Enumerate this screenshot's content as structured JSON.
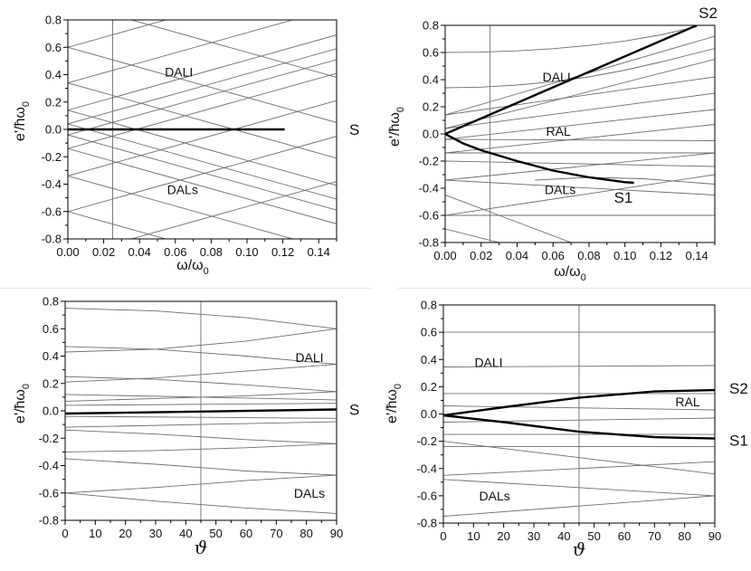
{
  "figure": {
    "panels": [
      {
        "id": "top-left",
        "xlabel": "ω/ω",
        "xlabel_sub": "0",
        "ylabel": "e'/ħω",
        "ylabel_sub": "0",
        "x_ticks": [
          "0.00",
          "0.02",
          "0.04",
          "0.06",
          "0.08",
          "0.10",
          "0.12",
          "0.14"
        ],
        "y_ticks": [
          "0.8",
          "0.6",
          "0.4",
          "0.2",
          "0.0",
          "-0.2",
          "-0.4",
          "-0.6",
          "-0.8"
        ],
        "region_labels": [
          "DALI",
          "DALs"
        ],
        "curve_labels": [
          "S"
        ]
      },
      {
        "id": "top-right",
        "xlabel": "ω/ω",
        "xlabel_sub": "0",
        "ylabel": "e'/ħω",
        "ylabel_sub": "0",
        "x_ticks": [
          "0.00",
          "0.02",
          "0.04",
          "0.06",
          "0.08",
          "0.10",
          "0.12",
          "0.14"
        ],
        "y_ticks": [
          "0.8",
          "0.6",
          "0.4",
          "0.2",
          "0.0",
          "-0.2",
          "-0.4",
          "-0.6",
          "-0.8"
        ],
        "region_labels": [
          "DALI",
          "RAL",
          "DALs"
        ],
        "curve_labels": [
          "S2",
          "S1"
        ]
      },
      {
        "id": "bottom-left",
        "xlabel": "ϑ",
        "ylabel": "e'/ħω",
        "ylabel_sub": "0",
        "x_ticks": [
          "0",
          "10",
          "20",
          "30",
          "40",
          "50",
          "60",
          "70",
          "80",
          "90"
        ],
        "y_ticks": [
          "0.8",
          "0.6",
          "0.4",
          "0.2",
          "0.0",
          "-0.2",
          "-0.4",
          "-0.6",
          "-0.8"
        ],
        "region_labels": [
          "DALI",
          "DALs"
        ],
        "curve_labels": [
          "S"
        ]
      },
      {
        "id": "bottom-right",
        "xlabel": "ϑ",
        "ylabel": "e'/ħω",
        "ylabel_sub": "0",
        "x_ticks": [
          "0",
          "10",
          "20",
          "30",
          "40",
          "50",
          "60",
          "70",
          "80",
          "90"
        ],
        "y_ticks": [
          "0.8",
          "0.6",
          "0.4",
          "0.2",
          "0.0",
          "-0.2",
          "-0.4",
          "-0.6",
          "-0.8"
        ],
        "region_labels": [
          "DALI",
          "RAL",
          "DALs"
        ],
        "curve_labels": [
          "S2",
          "S1"
        ]
      }
    ]
  },
  "chart_data": [
    {
      "type": "line",
      "panel": "top-left",
      "title": "",
      "xlabel": "ω/ω0",
      "ylabel": "e'/ħω0",
      "xlim": [
        0,
        0.15
      ],
      "ylim": [
        -0.8,
        0.8
      ],
      "vline_x": 0.025,
      "grid": false,
      "legend": "none",
      "background_lines": [
        [
          [
            0,
            0.6
          ],
          [
            0.15,
            0.05
          ]
        ],
        [
          [
            0,
            0.6
          ],
          [
            0.15,
            1.15
          ]
        ],
        [
          [
            0,
            0.34
          ],
          [
            0.15,
            -0.21
          ]
        ],
        [
          [
            0,
            0.34
          ],
          [
            0.15,
            0.89
          ]
        ],
        [
          [
            0,
            0.14
          ],
          [
            0.15,
            -0.41
          ]
        ],
        [
          [
            0,
            0.14
          ],
          [
            0.15,
            0.69
          ]
        ],
        [
          [
            0,
            0.04
          ],
          [
            0.15,
            -0.51
          ]
        ],
        [
          [
            0,
            0.04
          ],
          [
            0.15,
            0.59
          ]
        ],
        [
          [
            0,
            -0.04
          ],
          [
            0.15,
            0.51
          ]
        ],
        [
          [
            0,
            -0.04
          ],
          [
            0.15,
            -0.59
          ]
        ],
        [
          [
            0,
            -0.14
          ],
          [
            0.15,
            0.41
          ]
        ],
        [
          [
            0,
            -0.14
          ],
          [
            0.15,
            -0.69
          ]
        ],
        [
          [
            0,
            -0.34
          ],
          [
            0.15,
            0.21
          ]
        ],
        [
          [
            0,
            -0.34
          ],
          [
            0.15,
            -0.89
          ]
        ],
        [
          [
            0,
            -0.6
          ],
          [
            0.15,
            -0.05
          ]
        ],
        [
          [
            0,
            -0.6
          ],
          [
            0.15,
            -1.15
          ]
        ],
        [
          [
            0,
            0.93
          ],
          [
            0.15,
            0.38
          ]
        ],
        [
          [
            0,
            -0.93
          ],
          [
            0.15,
            -0.38
          ]
        ]
      ],
      "bold_series": [
        {
          "name": "S",
          "points": [
            [
              0,
              0
            ],
            [
              0.121,
              0
            ]
          ],
          "label_at": "right"
        }
      ],
      "region_labels": [
        {
          "text": "DALI",
          "x": 0.062,
          "y": 0.42
        },
        {
          "text": "DALs",
          "x": 0.064,
          "y": -0.44
        }
      ]
    },
    {
      "type": "line",
      "panel": "top-right",
      "title": "",
      "xlabel": "ω/ω0",
      "ylabel": "e'/ħω0",
      "xlim": [
        0,
        0.15
      ],
      "ylim": [
        -0.8,
        0.8
      ],
      "vline_x": 0.025,
      "grid": false,
      "legend": "none",
      "background_lines": [
        [
          [
            0,
            0.6
          ],
          [
            0.02,
            0.603
          ],
          [
            0.04,
            0.612
          ],
          [
            0.06,
            0.628
          ],
          [
            0.08,
            0.652
          ],
          [
            0.1,
            0.685
          ],
          [
            0.12,
            0.73
          ],
          [
            0.14,
            0.79
          ]
        ],
        [
          [
            0,
            0.34
          ],
          [
            0.02,
            0.345
          ],
          [
            0.04,
            0.36
          ],
          [
            0.06,
            0.385
          ],
          [
            0.08,
            0.42
          ],
          [
            0.1,
            0.47
          ],
          [
            0.12,
            0.53
          ],
          [
            0.15,
            0.63
          ]
        ],
        [
          [
            0,
            0.14
          ],
          [
            0.15,
            0.72
          ]
        ],
        [
          [
            0,
            0.04
          ],
          [
            0.15,
            0.55
          ]
        ],
        [
          [
            0,
            0.14
          ],
          [
            0.15,
            0.42
          ]
        ],
        [
          [
            0,
            0.04
          ],
          [
            0.15,
            0.3
          ]
        ],
        [
          [
            0,
            -0.04
          ],
          [
            0.15,
            0.18
          ]
        ],
        [
          [
            0,
            -0.14
          ],
          [
            0.15,
            0.07
          ]
        ],
        [
          [
            0,
            -0.04
          ],
          [
            0.15,
            -0.05
          ]
        ],
        [
          [
            0,
            -0.14
          ],
          [
            0.15,
            -0.14
          ]
        ],
        [
          [
            0,
            -0.2
          ],
          [
            0.15,
            -0.24
          ]
        ],
        [
          [
            0,
            -0.34
          ],
          [
            0.15,
            -0.14
          ]
        ],
        [
          [
            0,
            -0.6
          ],
          [
            0.15,
            -0.3
          ]
        ],
        [
          [
            0,
            -0.34
          ],
          [
            0.15,
            -0.45
          ]
        ],
        [
          [
            0,
            -0.6
          ],
          [
            0.15,
            -0.6
          ]
        ],
        [
          [
            0,
            -0.45
          ],
          [
            0.04,
            -0.65
          ],
          [
            0.07,
            -0.8
          ]
        ],
        [
          [
            0,
            -0.7
          ],
          [
            0.03,
            -0.8
          ]
        ],
        [
          [
            0.05,
            -0.34
          ],
          [
            0.08,
            -0.32
          ],
          [
            0.11,
            -0.33
          ],
          [
            0.15,
            -0.37
          ]
        ]
      ],
      "bold_series": [
        {
          "name": "S2",
          "points": [
            [
              0,
              0
            ],
            [
              0.14,
              0.8
            ]
          ],
          "label_at": "end"
        },
        {
          "name": "S1",
          "points": [
            [
              0,
              0
            ],
            [
              0.01,
              -0.07
            ],
            [
              0.02,
              -0.12
            ],
            [
              0.04,
              -0.2
            ],
            [
              0.06,
              -0.27
            ],
            [
              0.08,
              -0.32
            ],
            [
              0.1,
              -0.355
            ],
            [
              0.105,
              -0.36
            ]
          ],
          "label_at": "end"
        }
      ],
      "region_labels": [
        {
          "text": "DALI",
          "x": 0.062,
          "y": 0.42
        },
        {
          "text": "RAL",
          "x": 0.063,
          "y": 0.02
        },
        {
          "text": "DALs",
          "x": 0.064,
          "y": -0.41
        }
      ]
    },
    {
      "type": "line",
      "panel": "bottom-left",
      "title": "",
      "xlabel": "ϑ",
      "ylabel": "e'/ħω0",
      "xlim": [
        0,
        90
      ],
      "ylim": [
        -0.8,
        0.8
      ],
      "vline_x": 45,
      "grid": false,
      "legend": "none",
      "background_lines": [
        [
          [
            0,
            0.75
          ],
          [
            30,
            0.73
          ],
          [
            60,
            0.68
          ],
          [
            90,
            0.6
          ]
        ],
        [
          [
            0,
            0.43
          ],
          [
            30,
            0.45
          ],
          [
            60,
            0.51
          ],
          [
            90,
            0.6
          ]
        ],
        [
          [
            0,
            0.47
          ],
          [
            30,
            0.45
          ],
          [
            60,
            0.4
          ],
          [
            90,
            0.34
          ]
        ],
        [
          [
            0,
            0.21
          ],
          [
            30,
            0.24
          ],
          [
            60,
            0.29
          ],
          [
            90,
            0.34
          ]
        ],
        [
          [
            0,
            0.25
          ],
          [
            30,
            0.23
          ],
          [
            60,
            0.19
          ],
          [
            90,
            0.14
          ]
        ],
        [
          [
            0,
            0.07
          ],
          [
            30,
            0.09
          ],
          [
            60,
            0.11
          ],
          [
            90,
            0.14
          ]
        ],
        [
          [
            0,
            0.12
          ],
          [
            90,
            0.08
          ]
        ],
        [
          [
            0,
            0.04
          ],
          [
            90,
            0.055
          ]
        ],
        [
          [
            0,
            -0.04
          ],
          [
            90,
            -0.055
          ]
        ],
        [
          [
            0,
            -0.12
          ],
          [
            90,
            -0.08
          ]
        ],
        [
          [
            0,
            -0.14
          ],
          [
            30,
            -0.17
          ],
          [
            60,
            -0.21
          ],
          [
            90,
            -0.24
          ]
        ],
        [
          [
            0,
            -0.3
          ],
          [
            30,
            -0.29
          ],
          [
            60,
            -0.27
          ],
          [
            90,
            -0.24
          ]
        ],
        [
          [
            0,
            -0.35
          ],
          [
            30,
            -0.39
          ],
          [
            60,
            -0.44
          ],
          [
            90,
            -0.47
          ]
        ],
        [
          [
            0,
            -0.6
          ],
          [
            30,
            -0.56
          ],
          [
            60,
            -0.51
          ],
          [
            90,
            -0.47
          ]
        ],
        [
          [
            0,
            -0.6
          ],
          [
            30,
            -0.66
          ],
          [
            60,
            -0.71
          ],
          [
            90,
            -0.75
          ]
        ]
      ],
      "bold_series": [
        {
          "name": "S",
          "points": [
            [
              0,
              -0.02
            ],
            [
              45,
              -0.005
            ],
            [
              90,
              0.01
            ]
          ],
          "label_at": "right"
        }
      ],
      "region_labels": [
        {
          "text": "DALI",
          "x": 81,
          "y": 0.39
        },
        {
          "text": "DALs",
          "x": 81,
          "y": -0.6
        }
      ]
    },
    {
      "type": "line",
      "panel": "bottom-right",
      "title": "",
      "xlabel": "ϑ",
      "ylabel": "e'/ħω0",
      "xlim": [
        0,
        90
      ],
      "ylim": [
        -0.8,
        0.8
      ],
      "vline_x": 45,
      "grid": false,
      "legend": "none",
      "background_lines": [
        [
          [
            0,
            0.6
          ],
          [
            90,
            0.6
          ]
        ],
        [
          [
            0,
            0.345
          ],
          [
            90,
            0.355
          ]
        ],
        [
          [
            0,
            0.15
          ],
          [
            90,
            0.15
          ]
        ],
        [
          [
            0,
            0.06
          ],
          [
            90,
            0.03
          ]
        ],
        [
          [
            0,
            -0.06
          ],
          [
            90,
            -0.03
          ]
        ],
        [
          [
            0,
            -0.15
          ],
          [
            90,
            -0.15
          ]
        ],
        [
          [
            0,
            -0.24
          ],
          [
            90,
            -0.24
          ]
        ],
        [
          [
            0,
            -0.2
          ],
          [
            90,
            -0.44
          ]
        ],
        [
          [
            0,
            -0.45
          ],
          [
            90,
            -0.35
          ]
        ],
        [
          [
            0,
            -0.48
          ],
          [
            90,
            -0.6
          ]
        ],
        [
          [
            0,
            -0.75
          ],
          [
            90,
            -0.6
          ]
        ]
      ],
      "bold_series": [
        {
          "name": "S2",
          "points": [
            [
              0,
              -0.01
            ],
            [
              20,
              0.05
            ],
            [
              45,
              0.12
            ],
            [
              70,
              0.165
            ],
            [
              90,
              0.175
            ]
          ],
          "label_at": "right"
        },
        {
          "name": "S1",
          "points": [
            [
              0,
              -0.01
            ],
            [
              20,
              -0.06
            ],
            [
              45,
              -0.13
            ],
            [
              70,
              -0.17
            ],
            [
              90,
              -0.18
            ]
          ],
          "label_at": "right"
        }
      ],
      "region_labels": [
        {
          "text": "DALI",
          "x": 15,
          "y": 0.38
        },
        {
          "text": "RAL",
          "x": 81,
          "y": 0.09
        },
        {
          "text": "DALs",
          "x": 17,
          "y": -0.6
        }
      ]
    }
  ]
}
